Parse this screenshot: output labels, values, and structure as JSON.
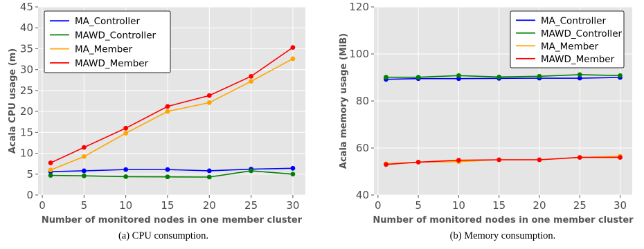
{
  "chart_data": [
    {
      "type": "line",
      "x": [
        1,
        5,
        10,
        15,
        20,
        25,
        30
      ],
      "xticks": [
        0,
        5,
        10,
        15,
        20,
        25,
        30
      ],
      "xlim": [
        -0.5,
        31.5
      ],
      "ylim": [
        0,
        45
      ],
      "yticks": [
        0,
        5,
        10,
        15,
        20,
        25,
        30,
        35,
        40,
        45
      ],
      "xlabel": "Number of monitored nodes in one member cluster",
      "ylabel": "Acala CPU usage (m)",
      "caption": "(a)  CPU consumption.",
      "grid": true,
      "legend_position": "top-left",
      "series": [
        {
          "name": "MA_Controller",
          "color": "#0000ff",
          "values": [
            5.6,
            5.8,
            6.1,
            6.1,
            5.8,
            6.2,
            6.4
          ]
        },
        {
          "name": "MAWD_Controller",
          "color": "#008000",
          "values": [
            4.7,
            4.6,
            4.4,
            4.35,
            4.3,
            5.8,
            5.0
          ]
        },
        {
          "name": "MA_Member",
          "color": "#ffa500",
          "values": [
            6.0,
            9.2,
            14.8,
            20.0,
            22.1,
            27.2,
            32.6
          ]
        },
        {
          "name": "MAWD_Member",
          "color": "#ff0000",
          "values": [
            7.7,
            11.4,
            16.0,
            21.2,
            23.8,
            28.4,
            35.3
          ]
        }
      ]
    },
    {
      "type": "line",
      "x": [
        1,
        5,
        10,
        15,
        20,
        25,
        30
      ],
      "xticks": [
        0,
        5,
        10,
        15,
        20,
        25,
        30
      ],
      "xlim": [
        -0.5,
        31.5
      ],
      "ylim": [
        40,
        120
      ],
      "yticks": [
        40,
        60,
        80,
        100,
        120
      ],
      "xlabel": "Number of monitored nodes in one member cluster",
      "ylabel": "Acala memory usage (MiB)",
      "caption": "(b)  Memory consumption.",
      "grid": true,
      "legend_position": "top-right",
      "series": [
        {
          "name": "MA_Controller",
          "color": "#0000ff",
          "values": [
            89.2,
            89.5,
            89.5,
            89.6,
            89.7,
            89.7,
            90.0
          ]
        },
        {
          "name": "MAWD_Controller",
          "color": "#008000",
          "values": [
            90.1,
            90.1,
            90.8,
            90.2,
            90.5,
            91.2,
            90.8
          ]
        },
        {
          "name": "MA_Member",
          "color": "#ffa500",
          "values": [
            53.3,
            54.0,
            54.2,
            55.0,
            55.0,
            56.0,
            56.5
          ]
        },
        {
          "name": "MAWD_Member",
          "color": "#ff0000",
          "values": [
            53.0,
            54.0,
            54.8,
            55.0,
            55.0,
            56.0,
            56.0
          ]
        }
      ]
    }
  ]
}
